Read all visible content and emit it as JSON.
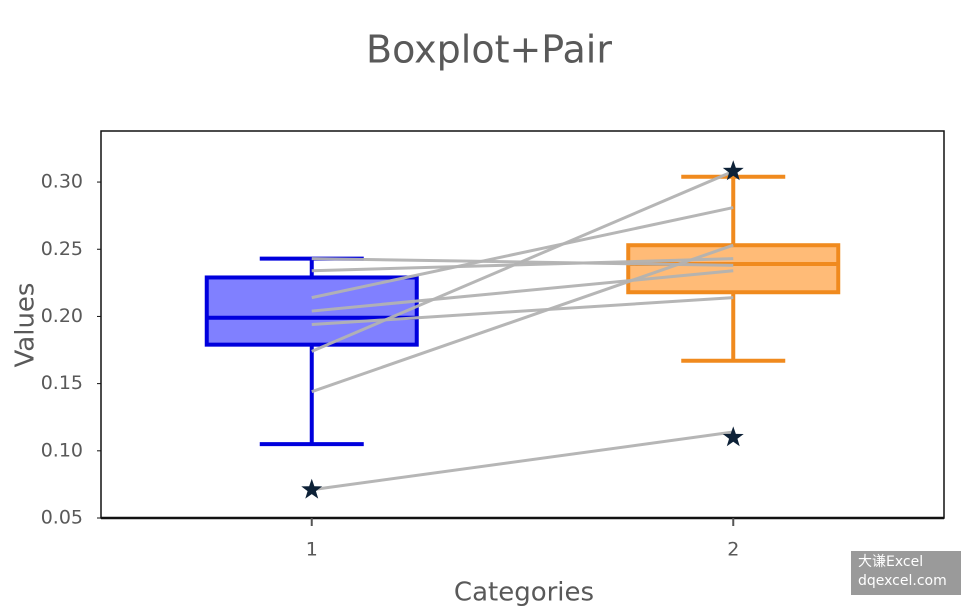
{
  "chart_data": {
    "type": "boxplot-pair",
    "title": "Boxplot+Pair",
    "x_label": "Categories",
    "y_label": "Values",
    "categories": [
      "1",
      "2"
    ],
    "xlim": [
      0.5,
      2.5
    ],
    "ylim": [
      0.05,
      0.338
    ],
    "yticks": [
      0.05,
      {
        "value": 0.1,
        "label": "0.10"
      },
      0.15,
      {
        "value": 0.2,
        "label": "0.20"
      },
      0.25,
      {
        "value": 0.3,
        "label": "0.30"
      }
    ],
    "boxes": [
      {
        "color": "#0000dd",
        "fill": "#8080ff",
        "min": 0.105,
        "q1": 0.179,
        "median": 0.199,
        "q3": 0.229,
        "max": 0.243,
        "outliers": [
          0.071
        ]
      },
      {
        "color": "#f08a1e",
        "fill": "#ffbb77",
        "min": 0.167,
        "q1": 0.218,
        "median": 0.239,
        "q3": 0.253,
        "max": 0.304,
        "outliers": [
          0.308,
          0.11
        ]
      }
    ],
    "outlier_color": "#0d2137",
    "pairs": {
      "color": "#b3b3b3",
      "values1": [
        0.071,
        0.144,
        0.174,
        0.194,
        0.204,
        0.214,
        0.234,
        0.243
      ],
      "values2": [
        0.114,
        0.253,
        0.308,
        0.214,
        0.234,
        0.281,
        0.243,
        0.238
      ]
    }
  },
  "watermark": [
    "大谦Excel",
    "dqexcel.com"
  ]
}
